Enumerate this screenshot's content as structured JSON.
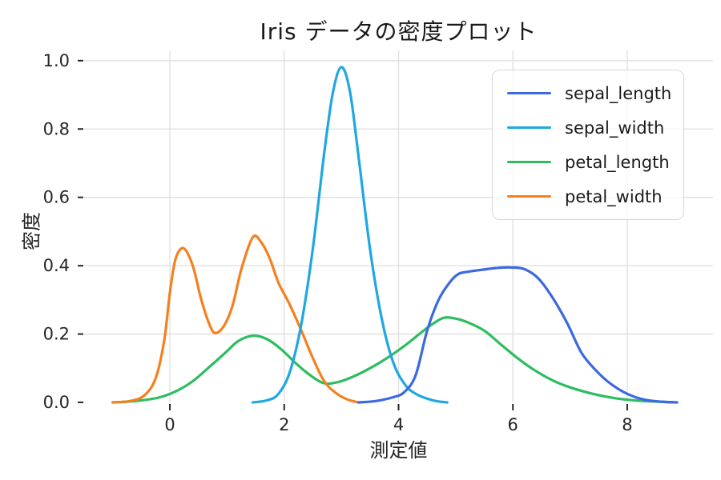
{
  "chart_data": {
    "type": "line",
    "subtype": "kde-density",
    "title": "Iris データの密度プロット",
    "xlabel": "測定値",
    "ylabel": "密度",
    "xlim": [
      -1.5,
      9.5
    ],
    "ylim": [
      0,
      1.03
    ],
    "x_ticks": [
      0,
      2,
      4,
      6,
      8
    ],
    "y_ticks": [
      0.0,
      0.2,
      0.4,
      0.6,
      0.8,
      1.0
    ],
    "grid": true,
    "legend_position": "upper right",
    "colors": {
      "grid": "#dedede",
      "tick": "#262626",
      "text": "#262626",
      "legend_border": "#d6d6d6"
    },
    "series": [
      {
        "name": "sepal_length",
        "color": "#3c69e1",
        "points": [
          [
            3.3,
            0
          ],
          [
            3.6,
            0.004
          ],
          [
            3.9,
            0.015
          ],
          [
            4.1,
            0.03
          ],
          [
            4.3,
            0.08
          ],
          [
            4.5,
            0.21
          ],
          [
            4.7,
            0.3
          ],
          [
            4.9,
            0.352
          ],
          [
            5.05,
            0.376
          ],
          [
            5.2,
            0.382
          ],
          [
            5.45,
            0.388
          ],
          [
            5.7,
            0.393
          ],
          [
            5.95,
            0.395
          ],
          [
            6.2,
            0.39
          ],
          [
            6.45,
            0.362
          ],
          [
            6.7,
            0.305
          ],
          [
            6.95,
            0.232
          ],
          [
            7.2,
            0.145
          ],
          [
            7.45,
            0.094
          ],
          [
            7.7,
            0.056
          ],
          [
            8.0,
            0.025
          ],
          [
            8.3,
            0.008
          ],
          [
            8.6,
            0.002
          ],
          [
            8.87,
            0
          ]
        ]
      },
      {
        "name": "sepal_width",
        "color": "#1ea7e0",
        "points": [
          [
            1.45,
            0
          ],
          [
            1.7,
            0.006
          ],
          [
            1.9,
            0.025
          ],
          [
            2.1,
            0.09
          ],
          [
            2.3,
            0.23
          ],
          [
            2.5,
            0.45
          ],
          [
            2.7,
            0.73
          ],
          [
            2.85,
            0.905
          ],
          [
            3.0,
            0.981
          ],
          [
            3.15,
            0.91
          ],
          [
            3.3,
            0.72
          ],
          [
            3.5,
            0.45
          ],
          [
            3.7,
            0.25
          ],
          [
            3.9,
            0.12
          ],
          [
            4.1,
            0.055
          ],
          [
            4.3,
            0.025
          ],
          [
            4.6,
            0.006
          ],
          [
            4.85,
            0
          ]
        ]
      },
      {
        "name": "petal_length",
        "color": "#2dbd5f",
        "points": [
          [
            -1.0,
            0
          ],
          [
            -0.6,
            0.004
          ],
          [
            -0.2,
            0.014
          ],
          [
            0.1,
            0.032
          ],
          [
            0.4,
            0.062
          ],
          [
            0.7,
            0.105
          ],
          [
            1.0,
            0.15
          ],
          [
            1.2,
            0.18
          ],
          [
            1.45,
            0.195
          ],
          [
            1.7,
            0.185
          ],
          [
            1.95,
            0.155
          ],
          [
            2.2,
            0.115
          ],
          [
            2.45,
            0.08
          ],
          [
            2.7,
            0.056
          ],
          [
            2.95,
            0.06
          ],
          [
            3.2,
            0.075
          ],
          [
            3.5,
            0.1
          ],
          [
            3.8,
            0.13
          ],
          [
            4.1,
            0.165
          ],
          [
            4.4,
            0.205
          ],
          [
            4.6,
            0.23
          ],
          [
            4.8,
            0.248
          ],
          [
            5.0,
            0.245
          ],
          [
            5.2,
            0.235
          ],
          [
            5.5,
            0.21
          ],
          [
            5.8,
            0.168
          ],
          [
            6.1,
            0.127
          ],
          [
            6.4,
            0.092
          ],
          [
            6.7,
            0.064
          ],
          [
            7.0,
            0.044
          ],
          [
            7.4,
            0.025
          ],
          [
            7.8,
            0.012
          ],
          [
            8.2,
            0.005
          ],
          [
            8.55,
            0.002
          ],
          [
            8.87,
            0
          ]
        ]
      },
      {
        "name": "petal_width",
        "color": "#f5801e",
        "points": [
          [
            -1.0,
            0
          ],
          [
            -0.7,
            0.004
          ],
          [
            -0.45,
            0.02
          ],
          [
            -0.25,
            0.07
          ],
          [
            -0.1,
            0.18
          ],
          [
            0.0,
            0.32
          ],
          [
            0.1,
            0.42
          ],
          [
            0.24,
            0.451
          ],
          [
            0.4,
            0.4
          ],
          [
            0.55,
            0.3
          ],
          [
            0.7,
            0.225
          ],
          [
            0.8,
            0.203
          ],
          [
            0.95,
            0.225
          ],
          [
            1.1,
            0.285
          ],
          [
            1.25,
            0.39
          ],
          [
            1.45,
            0.483
          ],
          [
            1.6,
            0.468
          ],
          [
            1.75,
            0.42
          ],
          [
            1.9,
            0.35
          ],
          [
            2.1,
            0.285
          ],
          [
            2.3,
            0.21
          ],
          [
            2.5,
            0.13
          ],
          [
            2.7,
            0.062
          ],
          [
            2.9,
            0.028
          ],
          [
            3.1,
            0.009
          ],
          [
            3.3,
            0
          ]
        ]
      }
    ]
  }
}
